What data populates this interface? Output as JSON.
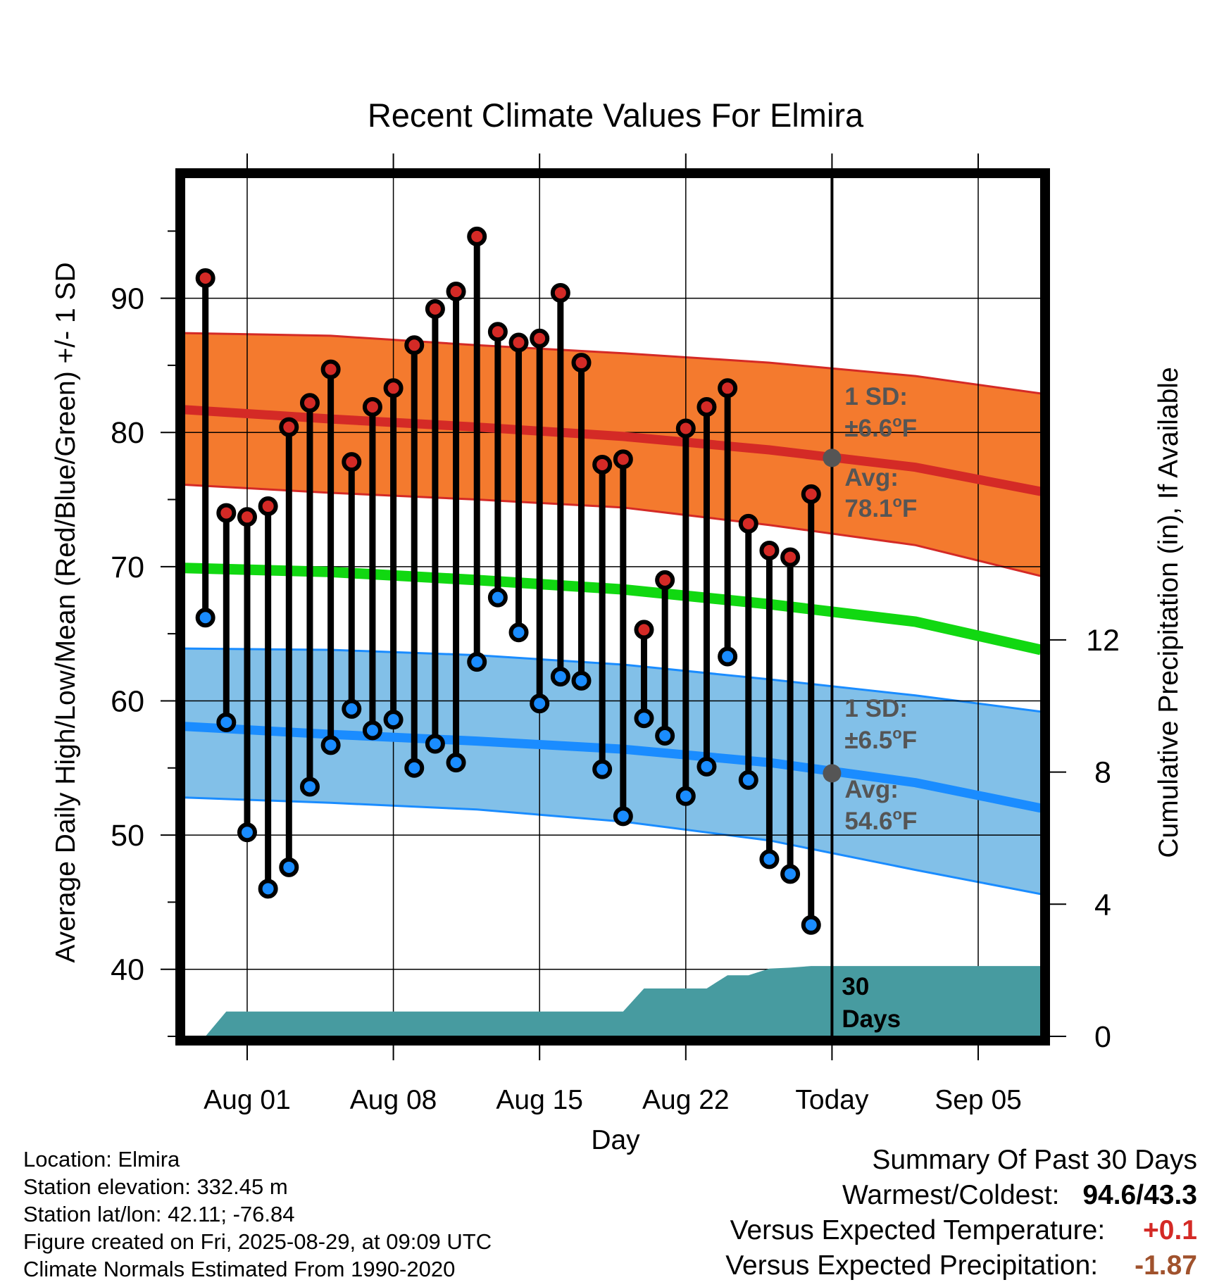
{
  "chart_data": {
    "type": "line",
    "title": "Recent Climate Values For Elmira",
    "xlabel": "Day",
    "ylabel": "Average Daily High/Low/Mean (Red/Blue/Green) +/- 1 SD",
    "y2label": "Cumulative Precipitation (in), If Available",
    "xlim": [
      "2025-07-29",
      "2025-09-08"
    ],
    "ylim": [
      35,
      99
    ],
    "y2lim": [
      0,
      26
    ],
    "x_ticks": [
      {
        "date": "2025-08-01",
        "label": "Aug 01"
      },
      {
        "date": "2025-08-08",
        "label": "Aug 08"
      },
      {
        "date": "2025-08-15",
        "label": "Aug 15"
      },
      {
        "date": "2025-08-22",
        "label": "Aug 22"
      },
      {
        "date": "2025-08-29",
        "label": "Today"
      },
      {
        "date": "2025-09-05",
        "label": "Sep 05"
      }
    ],
    "y_ticks": [
      40,
      50,
      60,
      70,
      80,
      90
    ],
    "y2_ticks": [
      0,
      4,
      8,
      12
    ],
    "grid": true,
    "today": "2025-08-29",
    "observed": {
      "dates": [
        "2025-07-30",
        "2025-07-31",
        "2025-08-01",
        "2025-08-02",
        "2025-08-03",
        "2025-08-04",
        "2025-08-05",
        "2025-08-06",
        "2025-08-07",
        "2025-08-08",
        "2025-08-09",
        "2025-08-10",
        "2025-08-11",
        "2025-08-12",
        "2025-08-13",
        "2025-08-14",
        "2025-08-15",
        "2025-08-16",
        "2025-08-17",
        "2025-08-18",
        "2025-08-19",
        "2025-08-20",
        "2025-08-21",
        "2025-08-22",
        "2025-08-23",
        "2025-08-24",
        "2025-08-25",
        "2025-08-26",
        "2025-08-27",
        "2025-08-28"
      ],
      "highs": [
        91.5,
        74.0,
        73.7,
        74.5,
        80.4,
        82.2,
        84.7,
        77.8,
        81.9,
        83.3,
        86.5,
        89.2,
        90.5,
        94.6,
        87.5,
        86.7,
        87.0,
        90.4,
        85.2,
        77.6,
        78.0,
        65.3,
        69.0,
        80.3,
        81.9,
        83.3,
        73.2,
        71.2,
        70.7,
        75.4
      ],
      "lows": [
        66.2,
        58.4,
        50.2,
        46.0,
        47.6,
        53.6,
        56.7,
        59.4,
        57.8,
        58.6,
        55.0,
        56.8,
        55.4,
        62.9,
        67.7,
        65.1,
        59.8,
        61.8,
        61.5,
        54.9,
        51.4,
        58.7,
        57.4,
        52.9,
        55.1,
        63.3,
        54.1,
        48.2,
        47.1,
        43.3
      ]
    },
    "normals": {
      "dates": [
        "2025-07-29",
        "2025-08-05",
        "2025-08-12",
        "2025-08-19",
        "2025-08-26",
        "2025-09-02",
        "2025-09-08"
      ],
      "high_mean": [
        81.7,
        81.0,
        80.4,
        79.7,
        78.7,
        77.4,
        75.6
      ],
      "high_sd_band": {
        "upper": [
          87.4,
          87.2,
          86.5,
          85.9,
          85.2,
          84.2,
          82.9
        ],
        "lower": [
          76.1,
          75.5,
          75.0,
          74.4,
          73.1,
          71.6,
          69.3
        ]
      },
      "mean": [
        69.9,
        69.6,
        69.0,
        68.3,
        67.2,
        65.9,
        63.8
      ],
      "low_mean": [
        58.1,
        57.5,
        57.0,
        56.4,
        55.4,
        53.9,
        52.0
      ],
      "low_sd_band": {
        "upper": [
          63.9,
          63.8,
          63.4,
          62.7,
          61.6,
          60.4,
          59.2
        ],
        "lower": [
          52.8,
          52.4,
          51.9,
          51.0,
          49.6,
          47.4,
          45.6
        ]
      }
    },
    "precipitation": {
      "dates": [
        "2025-07-30",
        "2025-07-31",
        "2025-08-19",
        "2025-08-20",
        "2025-08-23",
        "2025-08-24",
        "2025-08-25",
        "2025-08-26",
        "2025-08-27",
        "2025-08-28",
        "2025-09-08"
      ],
      "cumulative": [
        0.0,
        0.75,
        0.75,
        1.45,
        1.45,
        1.85,
        1.85,
        2.05,
        2.08,
        2.13,
        2.13
      ]
    },
    "annotations": {
      "high_sd": {
        "line1": "1 SD:",
        "line2": "±6.6",
        "unit": "F"
      },
      "high_avg": {
        "line1": "Avg:",
        "line2": "78.1",
        "unit": "F",
        "value": 78.1
      },
      "low_sd": {
        "line1": "1 SD:",
        "line2": "±6.5",
        "unit": "F"
      },
      "low_avg": {
        "line1": "Avg:",
        "line2": "54.6",
        "unit": "F",
        "value": 54.6
      },
      "degree_symbol": "o",
      "precip_line1": "30",
      "precip_line2": "Days"
    },
    "colors": {
      "high_band": "#f47a2e",
      "high_line": "#d42a26",
      "mean_line": "#11d811",
      "low_band": "#82c0e8",
      "low_line": "#1a8cff",
      "precip": "#479ba0",
      "marker_high": "#d42a26",
      "marker_low": "#1a8cff",
      "avg_dot": "#555555",
      "annotation_text": "#555555"
    }
  },
  "info": {
    "location": "Location: Elmira",
    "elevation": "Station elevation: 332.45 m",
    "latlon": "Station lat/lon: 42.11; -76.84",
    "created": "Figure created on Fri, 2025-08-29, at 09:09 UTC",
    "normals": "Climate Normals Estimated From 1990-2020"
  },
  "summary": {
    "title": "Summary Of Past 30 Days",
    "warmest_label": "Warmest/Coldest:",
    "warmest_value": "94.6/43.3",
    "temp_label": "Versus Expected Temperature:",
    "temp_value": "+0.1",
    "temp_color": "#d42a26",
    "precip_label": "Versus Expected Precipitation:",
    "precip_value": "-1.87",
    "precip_color": "#a0522d"
  }
}
